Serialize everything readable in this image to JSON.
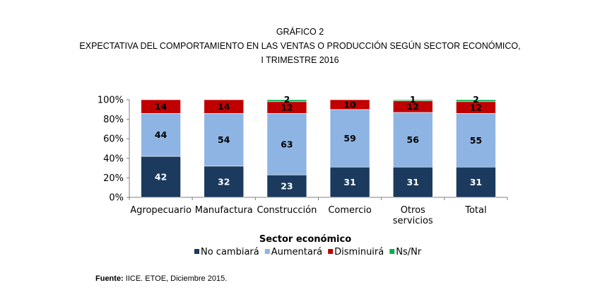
{
  "header": {
    "line1": "GRÁFICO 2",
    "line2": "EXPECTATIVA DEL COMPORTAMIENTO EN LAS VENTAS O PRODUCCIÓN SEGÚN SECTOR ECONÓMICO,",
    "line3": "I TRIMESTRE 2016"
  },
  "footer": {
    "source_label": "Fuente:",
    "source_text": " IICE. ETOE, Diciembre 2015."
  },
  "chart_data": {
    "type": "bar",
    "stacked": true,
    "percent_stacked": true,
    "categories": [
      [
        "Agropecuario"
      ],
      [
        "Manufactura"
      ],
      [
        "Construcción"
      ],
      [
        "Comercio"
      ],
      [
        "Otros",
        "servicios"
      ],
      [
        "Total"
      ]
    ],
    "series": [
      {
        "name": "No cambiará",
        "color": "#1b3a5e",
        "values": [
          42,
          32,
          23,
          31,
          31,
          31
        ],
        "labels": [
          "42",
          "32",
          "23",
          "31",
          "31",
          "31"
        ]
      },
      {
        "name": "Aumentará",
        "color": "#8eb4e3",
        "values": [
          44,
          54,
          63,
          59,
          56,
          55
        ],
        "labels": [
          "44",
          "54",
          "63",
          "59",
          "56",
          "55"
        ]
      },
      {
        "name": "Disminuirá",
        "color": "#c00000",
        "values": [
          14,
          14,
          12,
          10,
          12,
          12
        ],
        "labels": [
          "14",
          "14",
          "12",
          "10",
          "12",
          "12"
        ]
      },
      {
        "name": "Ns/Nr",
        "color": "#00b050",
        "values": [
          0,
          0,
          2,
          0,
          1,
          2
        ],
        "labels": [
          "",
          "",
          "2",
          "",
          "1",
          "2"
        ]
      }
    ],
    "xlabel": "Sector económico",
    "ylabel": "",
    "ylim": [
      0,
      100
    ],
    "yticks": [
      "0%",
      "20%",
      "40%",
      "60%",
      "80%",
      "100%"
    ],
    "legend": "bottom",
    "grid": false
  }
}
